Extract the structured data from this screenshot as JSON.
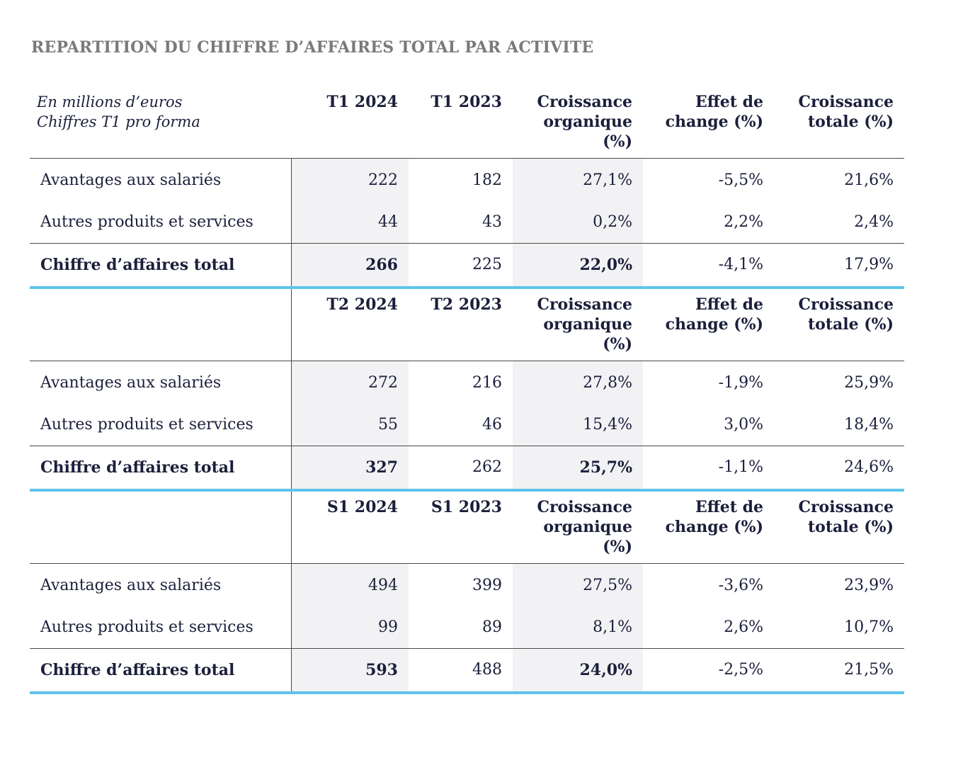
{
  "title": "REPARTITION DU CHIFFRE D’AFFAIRES TOTAL PAR ACTIVITE",
  "units_note": [
    "En millions d’euros",
    "Chiffres T1 pro forma"
  ],
  "sections": [
    {
      "headers": [
        "T1 2024",
        "T1 2023",
        "Croissance organique (%)",
        "Effet de change (%)",
        "Croissance totale (%)"
      ],
      "headers_lines": [
        [
          "T1 2024"
        ],
        [
          "T1 2023"
        ],
        [
          "Croissance",
          "organique",
          "(%)"
        ],
        [
          "Effet de",
          "change (%)"
        ],
        [
          "Croissance",
          "totale (%)"
        ]
      ],
      "rows": [
        {
          "label": "Avantages aux salariés",
          "values": [
            "222",
            "182",
            "27,1%",
            "-5,5%",
            "21,6%"
          ]
        },
        {
          "label": "Autres produits et services",
          "values": [
            "44",
            "43",
            "0,2%",
            "2,2%",
            "2,4%"
          ]
        }
      ],
      "total": {
        "label": "Chiffre d’affaires total",
        "values": [
          "266",
          "225",
          "22,0%",
          "-4,1%",
          "17,9%"
        ]
      }
    },
    {
      "headers": [
        "T2 2024",
        "T2 2023",
        "Croissance organique (%)",
        "Effet de change (%)",
        "Croissance totale (%)"
      ],
      "headers_lines": [
        [
          "T2 2024"
        ],
        [
          "T2 2023"
        ],
        [
          "Croissance",
          "organique",
          "(%)"
        ],
        [
          "Effet de",
          "change (%)"
        ],
        [
          "Croissance",
          "totale (%)"
        ]
      ],
      "rows": [
        {
          "label": "Avantages aux salariés",
          "values": [
            "272",
            "216",
            "27,8%",
            "-1,9%",
            "25,9%"
          ]
        },
        {
          "label": "Autres produits et services",
          "values": [
            "55",
            "46",
            "15,4%",
            "3,0%",
            "18,4%"
          ]
        }
      ],
      "total": {
        "label": "Chiffre d’affaires total",
        "values": [
          "327",
          "262",
          "25,7%",
          "-1,1%",
          "24,6%"
        ]
      }
    },
    {
      "headers": [
        "S1 2024",
        "S1 2023",
        "Croissance organique (%)",
        "Effet de change (%)",
        "Croissance totale (%)"
      ],
      "headers_lines": [
        [
          "S1 2024"
        ],
        [
          "S1 2023"
        ],
        [
          "Croissance",
          "organique",
          "(%)"
        ],
        [
          "Effet de",
          "change (%)"
        ],
        [
          "Croissance",
          "totale (%)"
        ]
      ],
      "rows": [
        {
          "label": "Avantages aux salariés",
          "values": [
            "494",
            "399",
            "27,5%",
            "-3,6%",
            "23,9%"
          ]
        },
        {
          "label": "Autres produits et services",
          "values": [
            "99",
            "89",
            "8,1%",
            "2,6%",
            "10,7%"
          ]
        }
      ],
      "total": {
        "label": "Chiffre d’affaires total",
        "values": [
          "593",
          "488",
          "24,0%",
          "-2,5%",
          "21,5%"
        ]
      }
    }
  ]
}
